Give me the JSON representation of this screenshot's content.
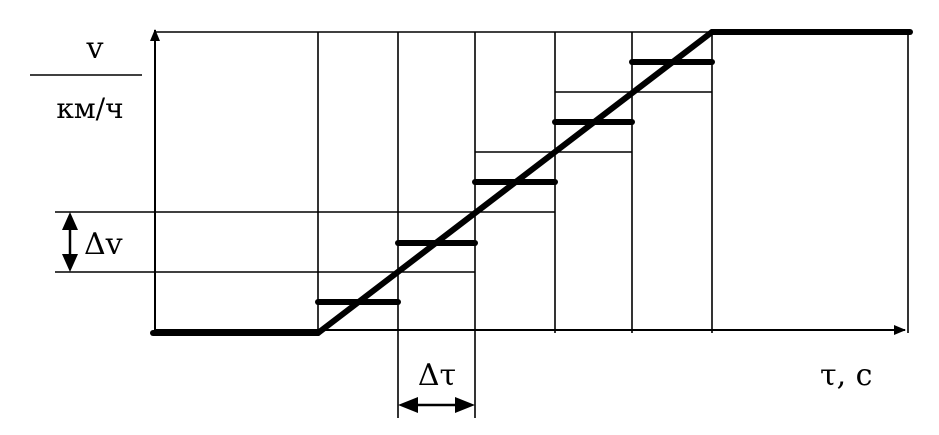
{
  "labels": {
    "y_numerator": "v",
    "y_denominator": "км/ч",
    "delta_v": "Δv",
    "delta_tau": "Δτ",
    "x_axis": "τ, с"
  },
  "colors": {
    "ink": "#000000",
    "background": "#ffffff"
  },
  "steps": 5
}
